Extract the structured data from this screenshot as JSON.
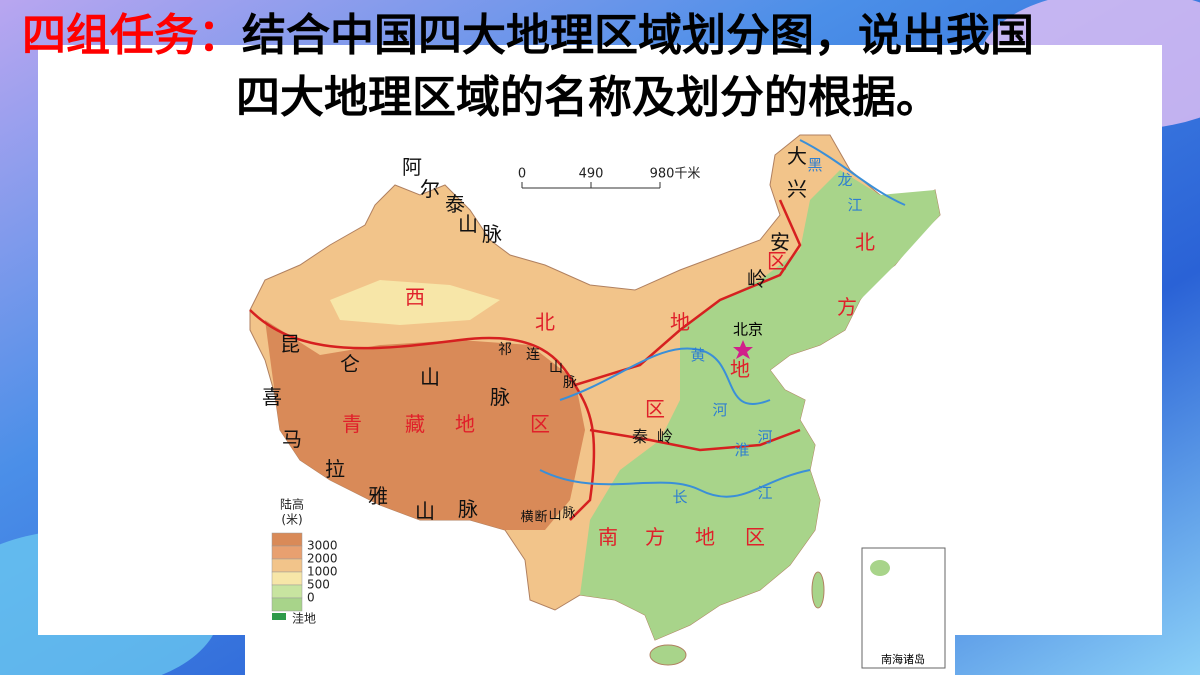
{
  "header": {
    "prefix": "四组任务：",
    "line1": "结合中国四大地理区域划分图，说出我国",
    "line2": "四大地理区域的名称及划分的根据。"
  },
  "map": {
    "scale": [
      "0",
      "490",
      "980千米"
    ],
    "regions": [
      "西北地区",
      "北方地区",
      "青藏地区",
      "南方地区"
    ],
    "mountains": [
      "阿尔泰山脉",
      "大兴安岭",
      "昆仑山脉",
      "喜马拉雅山脉",
      "祁连山脉",
      "秦岭",
      "横断山脉"
    ],
    "rivers": [
      "黄河",
      "淮河",
      "长江",
      "黑龙江"
    ],
    "capital": "北京",
    "legend": {
      "title": "陆高",
      "unit": "(米)",
      "levels": [
        "3000",
        "2000",
        "1000",
        "500",
        "0"
      ],
      "depression": "洼地"
    },
    "inset": "南海诸岛"
  }
}
